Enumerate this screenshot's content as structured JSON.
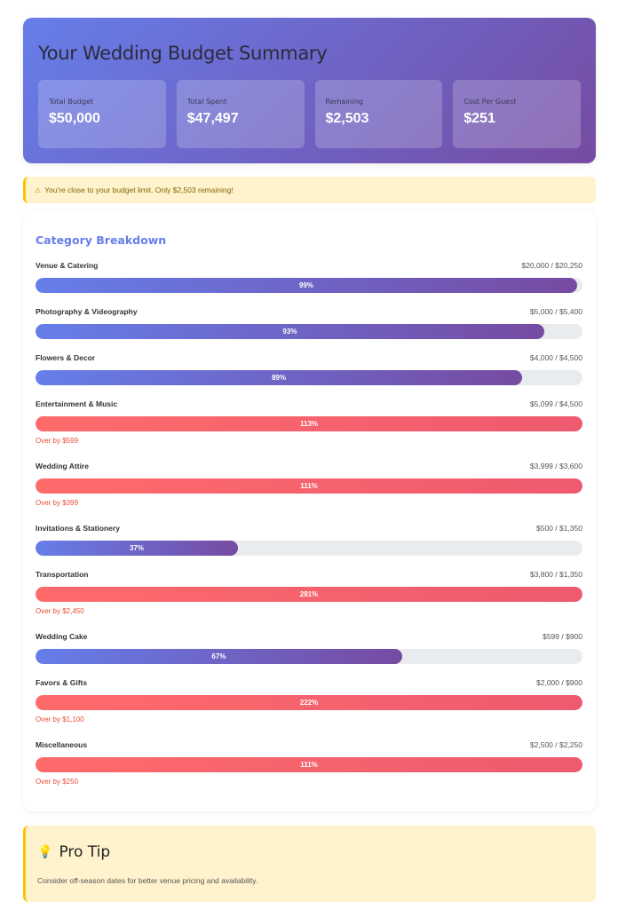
{
  "header": {
    "title": "Your Wedding Budget Summary",
    "stats": [
      {
        "label": "Total Budget",
        "value": "$50,000"
      },
      {
        "label": "Total Spent",
        "value": "$47,497"
      },
      {
        "label": "Remaining",
        "value": "$2,503"
      },
      {
        "label": "Cost Per Guest",
        "value": "$251"
      }
    ]
  },
  "alert": {
    "icon": "⚠",
    "text": "You're close to your budget limit. Only $2,503 remaining!"
  },
  "breakdown": {
    "title": "Category Breakdown",
    "categories": [
      {
        "name": "Venue & Catering",
        "amount": "$20,000 / $20,250",
        "percent_label": "99%",
        "percent": 99,
        "over": false,
        "over_text": ""
      },
      {
        "name": "Photography & Videography",
        "amount": "$5,000 / $5,400",
        "percent_label": "93%",
        "percent": 93,
        "over": false,
        "over_text": ""
      },
      {
        "name": "Flowers & Decor",
        "amount": "$4,000 / $4,500",
        "percent_label": "89%",
        "percent": 89,
        "over": false,
        "over_text": ""
      },
      {
        "name": "Entertainment & Music",
        "amount": "$5,099 / $4,500",
        "percent_label": "113%",
        "percent": 113,
        "over": true,
        "over_text": "Over by $599"
      },
      {
        "name": "Wedding Attire",
        "amount": "$3,999 / $3,600",
        "percent_label": "111%",
        "percent": 111,
        "over": true,
        "over_text": "Over by $399"
      },
      {
        "name": "Invitations & Stationery",
        "amount": "$500 / $1,350",
        "percent_label": "37%",
        "percent": 37,
        "over": false,
        "over_text": ""
      },
      {
        "name": "Transportation",
        "amount": "$3,800 / $1,350",
        "percent_label": "281%",
        "percent": 281,
        "over": true,
        "over_text": "Over by $2,450"
      },
      {
        "name": "Wedding Cake",
        "amount": "$599 / $900",
        "percent_label": "67%",
        "percent": 67,
        "over": false,
        "over_text": ""
      },
      {
        "name": "Favors & Gifts",
        "amount": "$2,000 / $900",
        "percent_label": "222%",
        "percent": 222,
        "over": true,
        "over_text": "Over by $1,100"
      },
      {
        "name": "Miscellaneous",
        "amount": "$2,500 / $2,250",
        "percent_label": "111%",
        "percent": 111,
        "over": true,
        "over_text": "Over by $250"
      }
    ]
  },
  "tip": {
    "icon": "💡",
    "title": "Pro Tip",
    "text": "Consider off-season dates for better venue pricing and availability."
  }
}
